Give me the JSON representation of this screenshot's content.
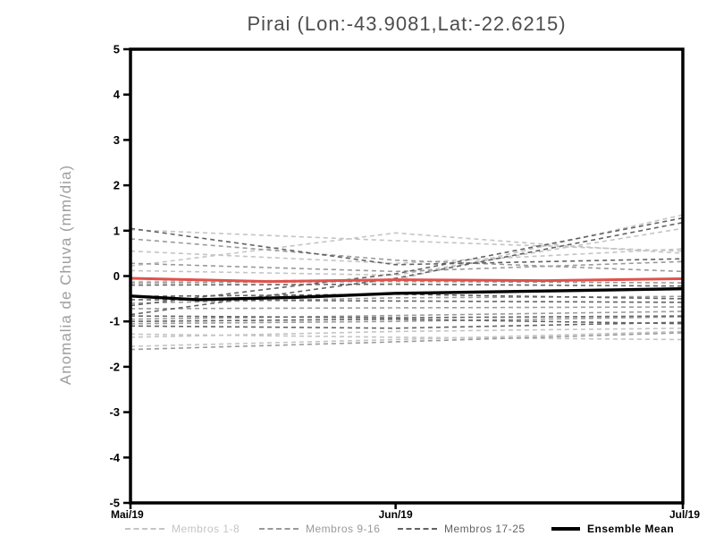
{
  "chart_data": {
    "type": "line",
    "title": "Pirai (Lon:-43.9081,Lat:-22.6215)",
    "ylabel": "Anomalia de Chuva (mm/dia)",
    "xlabel": "",
    "ylim": [
      -5,
      5
    ],
    "grid": false,
    "legend_position": "bottom",
    "y_axis_ticks": [
      "5",
      "4",
      "3",
      "2",
      "1",
      "0",
      "-1",
      "-2",
      "-3",
      "-4",
      "-5"
    ],
    "y_axis_tick_values": [
      5,
      4,
      3,
      2,
      1,
      0,
      -1,
      -2,
      -3,
      -4,
      -5
    ],
    "x_axis_ticks": [
      {
        "label": "Mai/19",
        "pos": 0
      },
      {
        "label": "Jun/19",
        "pos": 0.48
      },
      {
        "label": "Jul/19",
        "pos": 1
      }
    ],
    "groups": [
      {
        "name": "Membros 1-8",
        "color": "#c4c4c4"
      },
      {
        "name": "Membros 9-16",
        "color": "#9a9a9a"
      },
      {
        "name": "Membros 17-25",
        "color": "#636363"
      }
    ],
    "members": [
      {
        "group": 0,
        "points": [
          [
            0,
            0.22
          ],
          [
            0.25,
            0.6
          ],
          [
            0.48,
            0.95
          ],
          [
            0.75,
            0.7
          ],
          [
            1,
            0.5
          ]
        ]
      },
      {
        "group": 0,
        "points": [
          [
            0,
            0.55
          ],
          [
            0.48,
            0.28
          ],
          [
            1,
            0.6
          ]
        ]
      },
      {
        "group": 0,
        "points": [
          [
            0,
            1.02
          ],
          [
            0.48,
            0.78
          ],
          [
            1,
            0.55
          ]
        ]
      },
      {
        "group": 0,
        "points": [
          [
            0,
            -1.35
          ],
          [
            0.48,
            -1.22
          ],
          [
            1,
            -1.15
          ]
        ]
      },
      {
        "group": 0,
        "points": [
          [
            0,
            -1.55
          ],
          [
            0.48,
            -1.4
          ],
          [
            1,
            -1.22
          ]
        ]
      },
      {
        "group": 0,
        "points": [
          [
            0,
            -0.12
          ],
          [
            0.48,
            -0.08
          ],
          [
            1,
            1.35
          ]
        ]
      },
      {
        "group": 0,
        "points": [
          [
            0,
            0.12
          ],
          [
            0.48,
            0.02
          ],
          [
            1,
            1.05
          ]
        ]
      },
      {
        "group": 0,
        "points": [
          [
            0,
            -1.28
          ],
          [
            0.48,
            -1.35
          ],
          [
            1,
            -1.4
          ]
        ]
      },
      {
        "group": 1,
        "points": [
          [
            0,
            0.82
          ],
          [
            0.48,
            0.35
          ],
          [
            1,
            0.1
          ]
        ]
      },
      {
        "group": 1,
        "points": [
          [
            0,
            0.28
          ],
          [
            0.48,
            0.1
          ],
          [
            1,
            0.32
          ]
        ]
      },
      {
        "group": 1,
        "points": [
          [
            0,
            -0.15
          ],
          [
            0.48,
            -0.12
          ],
          [
            1,
            -0.15
          ]
        ]
      },
      {
        "group": 1,
        "points": [
          [
            0,
            -0.6
          ],
          [
            0.48,
            -0.48
          ],
          [
            1,
            -0.45
          ]
        ]
      },
      {
        "group": 1,
        "points": [
          [
            0,
            -0.72
          ],
          [
            0.48,
            -0.7
          ],
          [
            1,
            -0.68
          ]
        ]
      },
      {
        "group": 1,
        "points": [
          [
            0,
            -0.95
          ],
          [
            0.48,
            -0.87
          ],
          [
            1,
            -0.78
          ]
        ]
      },
      {
        "group": 1,
        "points": [
          [
            0,
            -1.05
          ],
          [
            0.48,
            -1.0
          ],
          [
            1,
            -0.9
          ]
        ]
      },
      {
        "group": 1,
        "points": [
          [
            0,
            -1.62
          ],
          [
            0.48,
            -1.45
          ],
          [
            1,
            -1.25
          ]
        ]
      },
      {
        "group": 2,
        "points": [
          [
            0,
            1.05
          ],
          [
            0.48,
            0.25
          ],
          [
            1,
            0.38
          ]
        ]
      },
      {
        "group": 2,
        "points": [
          [
            0,
            -0.65
          ],
          [
            0.48,
            0.05
          ],
          [
            1,
            1.28
          ]
        ]
      },
      {
        "group": 2,
        "points": [
          [
            0,
            -0.85
          ],
          [
            0.48,
            -0.05
          ],
          [
            1,
            1.18
          ]
        ]
      },
      {
        "group": 2,
        "points": [
          [
            0,
            -0.2
          ],
          [
            0.48,
            -0.18
          ],
          [
            1,
            -0.22
          ]
        ]
      },
      {
        "group": 2,
        "points": [
          [
            0,
            -0.45
          ],
          [
            0.48,
            -0.4
          ],
          [
            1,
            -0.5
          ]
        ]
      },
      {
        "group": 2,
        "points": [
          [
            0,
            -0.52
          ],
          [
            0.48,
            -0.55
          ],
          [
            1,
            -0.58
          ]
        ]
      },
      {
        "group": 2,
        "points": [
          [
            0,
            -0.88
          ],
          [
            0.48,
            -0.92
          ],
          [
            1,
            -0.88
          ]
        ]
      },
      {
        "group": 2,
        "points": [
          [
            0,
            -1.0
          ],
          [
            0.48,
            -0.95
          ],
          [
            1,
            -1.05
          ]
        ]
      },
      {
        "group": 2,
        "points": [
          [
            0,
            -1.1
          ],
          [
            0.48,
            -1.15
          ],
          [
            1,
            -1.02
          ]
        ]
      }
    ],
    "reference_line": {
      "name": "zero-anomaly-reference",
      "color": "#e0524a",
      "points": [
        [
          0,
          -0.05
        ],
        [
          0.25,
          -0.12
        ],
        [
          0.48,
          -0.08
        ],
        [
          0.75,
          -0.1
        ],
        [
          1,
          -0.06
        ]
      ]
    },
    "ensemble_mean": {
      "name": "Ensemble Mean",
      "color": "#000000",
      "points": [
        [
          0,
          -0.44
        ],
        [
          0.12,
          -0.52
        ],
        [
          0.3,
          -0.47
        ],
        [
          0.48,
          -0.38
        ],
        [
          0.75,
          -0.33
        ],
        [
          1,
          -0.28
        ]
      ]
    },
    "legend": [
      {
        "label": "Membros 1-8",
        "style": "dashed",
        "color": "#c4c4c4"
      },
      {
        "label": "Membros 9-16",
        "style": "dashed",
        "color": "#9a9a9a"
      },
      {
        "label": "Membros 17-25",
        "style": "dashed",
        "color": "#636363"
      },
      {
        "label": "Ensemble Mean",
        "style": "solid",
        "color": "#000000"
      }
    ]
  }
}
